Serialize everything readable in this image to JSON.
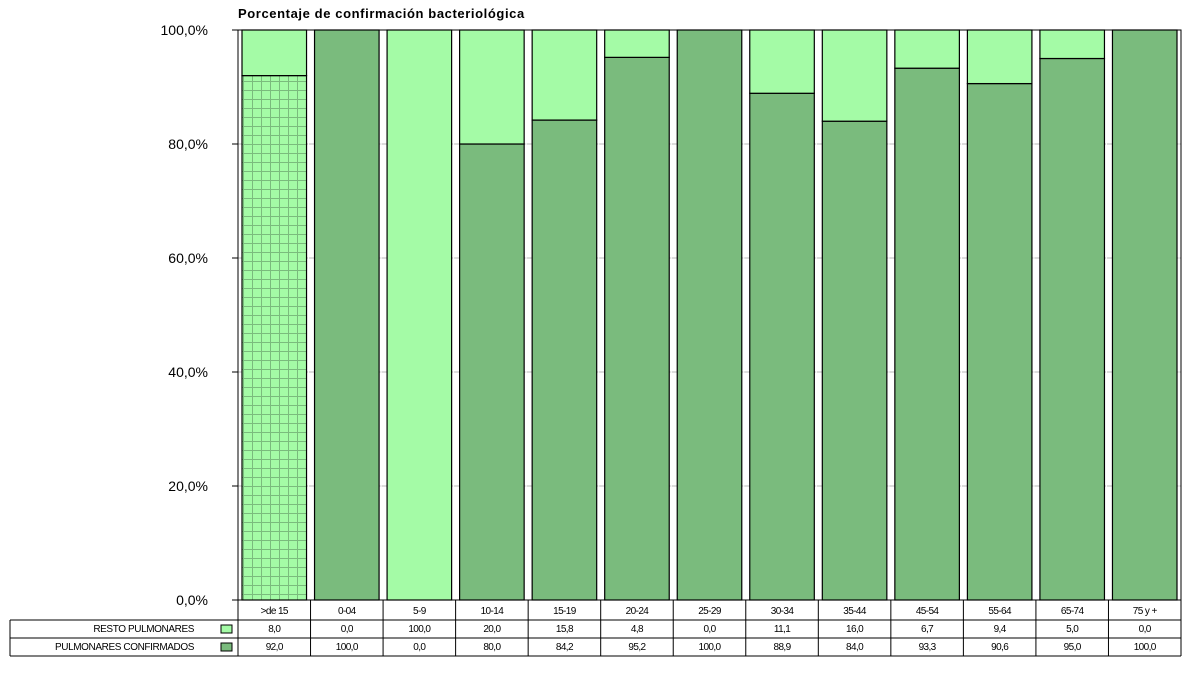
{
  "chart_data": {
    "type": "bar",
    "stacked": true,
    "title": "Porcentaje de confirmación bacteriológica",
    "ylim": [
      0,
      100
    ],
    "yticks": [
      "0,0%",
      "20,0%",
      "40,0%",
      "60,0%",
      "80,0%",
      "100,0%"
    ],
    "grid": true,
    "legend": "data-table-bottom",
    "categories": [
      ">de 15",
      "0-04",
      "5-9",
      "10-14",
      "15-19",
      "20-24",
      "25-29",
      "30-34",
      "35-44",
      "45-54",
      "55-64",
      "65-74",
      "75 y +"
    ],
    "series": [
      {
        "name": "RESTO PULMONARES",
        "color": "#a4fba6",
        "values": [
          8.0,
          0.0,
          100.0,
          20.0,
          15.8,
          4.8,
          0.0,
          11.1,
          16.0,
          6.7,
          9.4,
          5.0,
          0.0
        ],
        "labels": [
          "8,0",
          "0,0",
          "100,0",
          "20,0",
          "15,8",
          "4,8",
          "0,0",
          "11,1",
          "16,0",
          "6,7",
          "9,4",
          "5,0",
          "0,0"
        ]
      },
      {
        "name": "PULMONARES CONFIRMADOS",
        "color": "#7abb7d",
        "values": [
          92.0,
          100.0,
          0.0,
          80.0,
          84.2,
          95.2,
          100.0,
          88.9,
          84.0,
          93.3,
          90.6,
          95.0,
          100.0
        ],
        "labels": [
          "92,0",
          "100,0",
          "0,0",
          "80,0",
          "84,2",
          "95,2",
          "100,0",
          "88,9",
          "84,0",
          "93,3",
          "90,6",
          "95,0",
          "100,0"
        ]
      }
    ],
    "highlight": {
      "category_index": 0,
      "series_index": 1,
      "pattern": "grid",
      "fill": "#a4fba6",
      "pattern_color": "#7abb7d"
    }
  }
}
